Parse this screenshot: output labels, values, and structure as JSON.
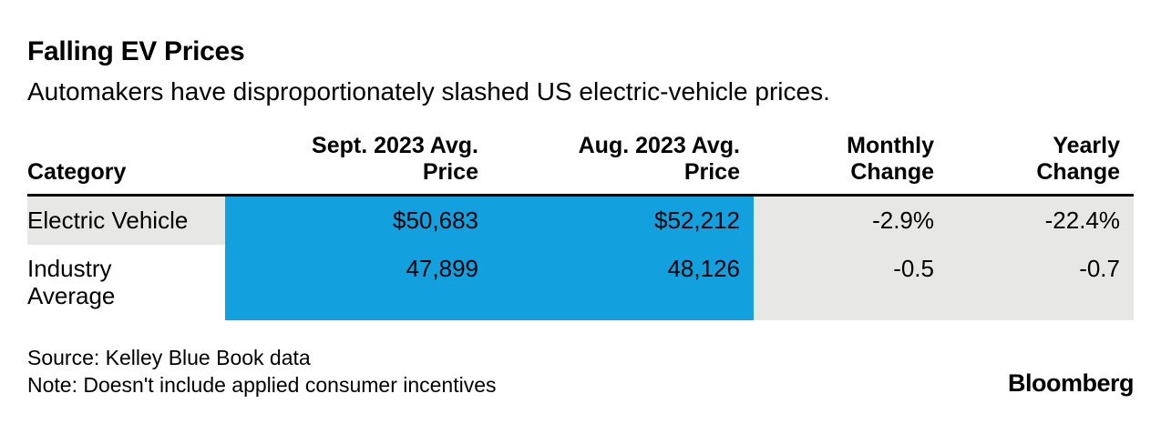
{
  "header": {
    "title": "Falling EV Prices",
    "subtitle": "Automakers have disproportionately slashed US electric-vehicle prices."
  },
  "table": {
    "columns": [
      "Category",
      "Sept. 2023 Avg.\nPrice",
      "Aug. 2023 Avg.\nPrice",
      "Monthly\nChange",
      "Yearly\nChange"
    ],
    "rows": [
      {
        "cells": [
          "Electric Vehicle",
          "$50,683",
          "$52,212",
          "-2.9%",
          "-22.4%"
        ]
      },
      {
        "cells": [
          "Industry\nAverage",
          "47,899",
          "48,126",
          "-0.5",
          "-0.7"
        ]
      }
    ]
  },
  "footer": {
    "source": "Source: Kelley Blue Book data",
    "note": "Note: Doesn't include applied consumer incentives",
    "brand": "Bloomberg"
  },
  "colors": {
    "highlight_blue": "#12A0DF",
    "band_gray": "#E7E7E5"
  },
  "chart_data": {
    "type": "table",
    "title": "Falling EV Prices",
    "subtitle": "Automakers have disproportionately slashed US electric-vehicle prices.",
    "columns": [
      "Category",
      "Sept. 2023 Avg. Price",
      "Aug. 2023 Avg. Price",
      "Monthly Change",
      "Yearly Change"
    ],
    "rows": [
      [
        "Electric Vehicle",
        "$50,683",
        "$52,212",
        "-2.9%",
        "-22.4%"
      ],
      [
        "Industry Average",
        "47,899",
        "48,126",
        "-0.5",
        "-0.7"
      ]
    ],
    "highlighted_columns": [
      "Sept. 2023 Avg. Price",
      "Aug. 2023 Avg. Price"
    ],
    "source": "Source: Kelley Blue Book data",
    "note": "Note: Doesn't include applied consumer incentives",
    "brand": "Bloomberg"
  }
}
